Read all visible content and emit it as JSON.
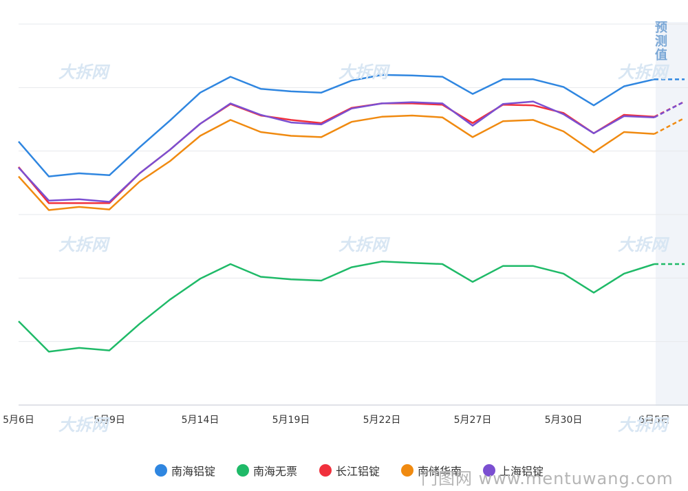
{
  "chart_data": {
    "type": "line",
    "categories": [
      "5月6日",
      "",
      "",
      "5月9日",
      "",
      "",
      "5月14日",
      "",
      "",
      "5月19日",
      "",
      "",
      "5月22日",
      "",
      "",
      "5月27日",
      "",
      "",
      "5月30日",
      "",
      "",
      "6月5日"
    ],
    "tick_labels": [
      "5月6日",
      "5月9日",
      "5月14日",
      "5月19日",
      "5月22日",
      "5月27日",
      "5月30日",
      "6月5日"
    ],
    "ylim": [
      0,
      6
    ],
    "forecast_label": "预测值",
    "series": [
      {
        "name": "南海铝锭",
        "color": "#2f86e0",
        "values": [
          4.15,
          3.6,
          3.65,
          3.62,
          4.06,
          4.48,
          4.92,
          5.17,
          4.98,
          4.94,
          4.92,
          5.11,
          5.2,
          5.19,
          5.17,
          4.9,
          5.13,
          5.13,
          5.01,
          4.72,
          5.02,
          5.13
        ],
        "forecast": 5.13
      },
      {
        "name": "南海无票",
        "color": "#1fba68",
        "values": [
          1.32,
          0.84,
          0.9,
          0.86,
          1.28,
          1.66,
          1.99,
          2.22,
          2.02,
          1.98,
          1.96,
          2.17,
          2.26,
          2.24,
          2.22,
          1.94,
          2.19,
          2.19,
          2.07,
          1.77,
          2.07,
          2.22
        ],
        "forecast": 2.22
      },
      {
        "name": "长江铝锭",
        "color": "#f0303c",
        "values": [
          3.75,
          3.18,
          3.18,
          3.18,
          3.65,
          4.02,
          4.43,
          4.74,
          4.56,
          4.49,
          4.44,
          4.68,
          4.75,
          4.75,
          4.73,
          4.44,
          4.73,
          4.72,
          4.6,
          4.28,
          4.57,
          4.54
        ],
        "forecast": 4.78
      },
      {
        "name": "南储华南",
        "color": "#f08a10",
        "values": [
          3.6,
          3.07,
          3.12,
          3.08,
          3.52,
          3.84,
          4.24,
          4.49,
          4.3,
          4.24,
          4.22,
          4.46,
          4.54,
          4.56,
          4.53,
          4.22,
          4.47,
          4.49,
          4.31,
          3.98,
          4.3,
          4.27
        ],
        "forecast": 4.52
      },
      {
        "name": "上海铝锭",
        "color": "#7b4fd1",
        "values": [
          3.74,
          3.22,
          3.24,
          3.2,
          3.65,
          4.02,
          4.43,
          4.75,
          4.57,
          4.45,
          4.42,
          4.67,
          4.75,
          4.77,
          4.75,
          4.4,
          4.74,
          4.78,
          4.58,
          4.28,
          4.55,
          4.53
        ],
        "forecast": 4.78
      }
    ]
  },
  "watermark_text": "大拆网",
  "site_watermark": "门图网 www.mentuwang.com"
}
